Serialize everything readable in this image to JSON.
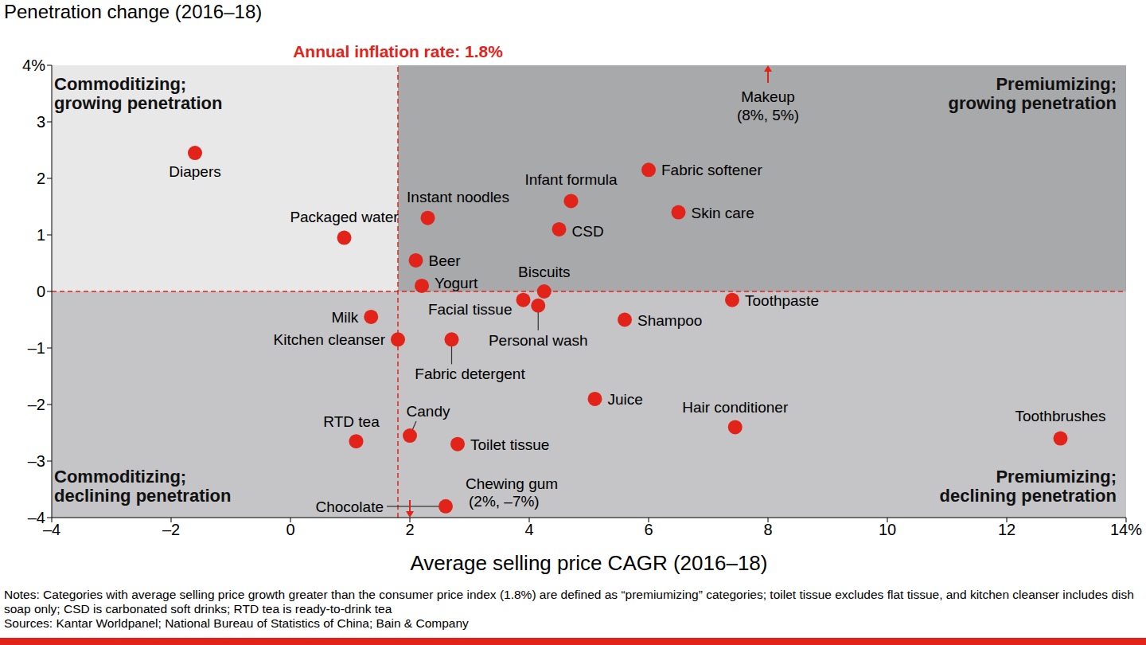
{
  "chart_data": {
    "type": "scatter",
    "x_label": "Average selling price CAGR (2016–18)",
    "y_label": "Penetration change (2016–18)",
    "xlim": [
      -4,
      14
    ],
    "xticks": [
      {
        "value": -4,
        "label": "–4"
      },
      {
        "value": -2,
        "label": "–2"
      },
      0,
      2,
      4,
      6,
      8,
      10,
      12,
      {
        "value": 14,
        "label": "14%"
      }
    ],
    "ylim": [
      -4,
      4
    ],
    "yticks": [
      {
        "value": -4,
        "label": "–4"
      },
      {
        "value": -3,
        "label": "–3"
      },
      {
        "value": -2,
        "label": "–2"
      },
      {
        "value": -1,
        "label": "–1"
      },
      0,
      1,
      2,
      3,
      {
        "value": 4,
        "label": "4%"
      }
    ],
    "color": "#e2231a",
    "points": [
      {
        "name": "Diapers",
        "x": -1.6,
        "y": 2.45
      },
      {
        "name": "Packaged water",
        "x": 0.9,
        "y": 0.95
      },
      {
        "name": "Instant noodles",
        "x": 2.3,
        "y": 1.3
      },
      {
        "name": "Beer",
        "x": 2.1,
        "y": 0.55
      },
      {
        "name": "Yogurt",
        "x": 2.2,
        "y": 0.1
      },
      {
        "name": "Infant formula",
        "x": 4.7,
        "y": 1.6
      },
      {
        "name": "CSD",
        "x": 4.5,
        "y": 1.1
      },
      {
        "name": "Fabric softener",
        "x": 6.0,
        "y": 2.15
      },
      {
        "name": "Skin care",
        "x": 6.5,
        "y": 1.4
      },
      {
        "name": "Makeup",
        "x": 8,
        "y": 5,
        "annotation": "(8%, 5%)"
      },
      {
        "name": "Biscuits",
        "x": 4.25,
        "y": 0.0
      },
      {
        "name": "Facial tissue",
        "x": 3.9,
        "y": -0.15
      },
      {
        "name": "Personal wash",
        "x": 4.15,
        "y": -0.25
      },
      {
        "name": "Toothpaste",
        "x": 7.4,
        "y": -0.15
      },
      {
        "name": "Shampoo",
        "x": 5.6,
        "y": -0.5
      },
      {
        "name": "Milk",
        "x": 1.35,
        "y": -0.45
      },
      {
        "name": "Kitchen cleanser",
        "x": 1.8,
        "y": -0.85
      },
      {
        "name": "Fabric detergent",
        "x": 2.7,
        "y": -0.85
      },
      {
        "name": "Juice",
        "x": 5.1,
        "y": -1.9
      },
      {
        "name": "Hair conditioner",
        "x": 7.45,
        "y": -2.4
      },
      {
        "name": "Toothbrushes",
        "x": 12.9,
        "y": -2.6
      },
      {
        "name": "RTD tea",
        "x": 1.1,
        "y": -2.65
      },
      {
        "name": "Candy",
        "x": 2.0,
        "y": -2.55
      },
      {
        "name": "Toilet tissue",
        "x": 2.8,
        "y": -2.7
      },
      {
        "name": "Chocolate",
        "x": 2.6,
        "y": -3.8
      },
      {
        "name": "Chewing gum",
        "x": 2,
        "y": -7,
        "annotation": "(2%, –7%)"
      }
    ],
    "reference_lines": [
      {
        "axis": "x",
        "value": 1.8,
        "label": "Annual inflation rate: 1.8%",
        "color": "#e2231a"
      },
      {
        "axis": "y",
        "value": 0,
        "color": "#e2231a"
      }
    ],
    "quadrants": [
      {
        "lines": [
          "Commoditizing;",
          "growing penetration"
        ],
        "color": "#e8e8e8"
      },
      {
        "lines": [
          "Premiumizing;",
          "growing penetration"
        ],
        "color": "#a8a9ab"
      },
      {
        "lines": [
          "Commoditizing;",
          "declining penetration"
        ],
        "color": "#c5c5c7"
      },
      {
        "lines": [
          "Premiumizing;",
          "declining penetration"
        ],
        "color": "#c5c5c7"
      }
    ],
    "notes": "Notes: Categories with average selling price growth greater than the consumer price index (1.8%) are defined as “premiumizing” categories; toilet tissue excludes flat tissue, and kitchen cleanser includes dish soap only; CSD is carbonated soft drinks; RTD tea is ready-to-drink tea",
    "sources": "Sources: Kantar Worldpanel; National Bureau of Statistics of China; Bain & Company"
  }
}
